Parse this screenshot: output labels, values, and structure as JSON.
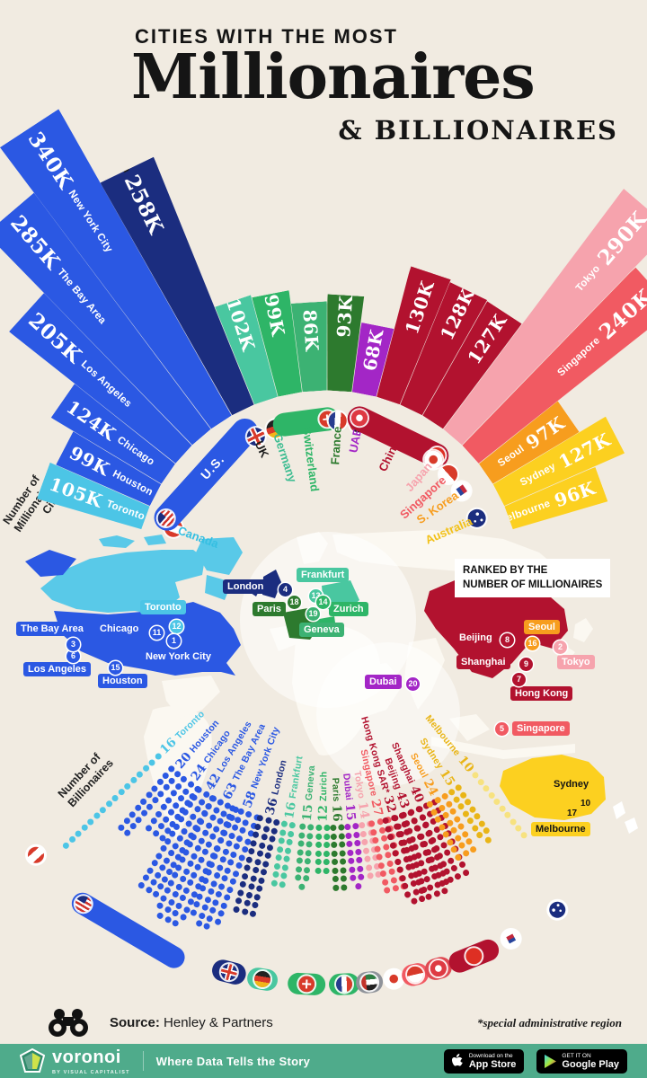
{
  "title": {
    "kicker": "CITIES WITH THE MOST",
    "main": "Millionaires",
    "sub": "& BILLIONAIRES"
  },
  "annotations": {
    "millionaires_axis": [
      "Number of",
      "Millionaires",
      "City"
    ],
    "billionaires_axis": [
      "Number of",
      "Billionaires"
    ],
    "ranked_note": [
      "RANKED BY THE",
      "NUMBER OF MILLIONAIRES"
    ],
    "footnote": "*special administrative region"
  },
  "source": {
    "label": "Source:",
    "value": "Henley & Partners"
  },
  "footer": {
    "brand": "voronoi",
    "brand_sub": "BY VISUAL CAPITALIST",
    "tagline": "Where Data Tells the Story",
    "appstore": [
      "Download on the",
      "App Store"
    ],
    "gplay": [
      "GET IT ON",
      "Google Play"
    ]
  },
  "colors": {
    "background": "#f1ebe1",
    "us_blue": "#2b58e3",
    "uk_navy": "#1b2d7f",
    "canada_cyan": "#4cc5e6",
    "germany_teal": "#49c7a0",
    "swiss_green": "#2eb567",
    "france_green": "#2d7a2e",
    "uae_purple": "#a326c6",
    "china_crimson": "#b2122f",
    "japan_pink": "#f6a3ad",
    "singapore_salmon": "#f15a62",
    "skorea_orange": "#f79d1e",
    "australia_yellow": "#fcd020",
    "footer_green": "#4fab8b"
  },
  "countries": [
    {
      "id": "canada",
      "name": "Canada",
      "color": "#35bfe2"
    },
    {
      "id": "us",
      "name": "U.S.",
      "color": "#2b58e3"
    },
    {
      "id": "uk",
      "name": "UK",
      "color": "#1c1c1c"
    },
    {
      "id": "germany",
      "name": "Germany",
      "color": "#3fbd92"
    },
    {
      "id": "swiss",
      "name": "Switzerland",
      "color": "#2eb567"
    },
    {
      "id": "france",
      "name": "France",
      "color": "#2d7a2e"
    },
    {
      "id": "uae",
      "name": "UAE",
      "color": "#a326c6"
    },
    {
      "id": "china",
      "name": "China",
      "color": "#b2122f"
    },
    {
      "id": "japan",
      "name": "Japan",
      "color": "#f6a3ad"
    },
    {
      "id": "singapore",
      "name": "Singapore",
      "color": "#f15a62"
    },
    {
      "id": "skorea",
      "name": "S. Korea",
      "color": "#f79d1e"
    },
    {
      "id": "australia",
      "name": "Australia",
      "color": "#f2c118"
    }
  ],
  "chart_data": [
    {
      "type": "bar",
      "name": "millionaires-by-city",
      "title": "Number of Millionaires by City",
      "unit": "thousands",
      "series": [
        {
          "city": "Toronto",
          "country": "Canada",
          "label": "105K",
          "value": 105,
          "rank": 12,
          "color": "#4cc5e6",
          "label_style": "inside"
        },
        {
          "city": "Houston",
          "country": "U.S.",
          "label": "99K",
          "value": 99,
          "rank": 15,
          "color": "#2b58e3",
          "label_style": "inside"
        },
        {
          "city": "Chicago",
          "country": "U.S.",
          "label": "124K",
          "value": 124,
          "rank": 11,
          "color": "#2b58e3",
          "label_style": "inside"
        },
        {
          "city": "Los Angeles",
          "country": "U.S.",
          "label": "205K",
          "value": 205,
          "rank": 6,
          "color": "#2b58e3",
          "label_style": "inside"
        },
        {
          "city": "The Bay Area",
          "country": "U.S.",
          "label": "285K",
          "value": 285,
          "rank": 3,
          "color": "#2b58e3",
          "label_style": "inside"
        },
        {
          "city": "New York City",
          "country": "U.S.",
          "label": "340K",
          "value": 340,
          "rank": 1,
          "color": "#2b58e3",
          "label_style": "inside"
        },
        {
          "city": "London",
          "country": "UK",
          "label": "258K",
          "value": 258,
          "rank": 4,
          "color": "#1b2d7f",
          "label_style": "outside",
          "name_color": "#1c1c1c"
        },
        {
          "city": "Frankfurt",
          "country": "Germany",
          "label": "102K",
          "value": 102,
          "rank": 13,
          "color": "#49c7a0",
          "label_style": "outside",
          "name_color": "#3fbd92"
        },
        {
          "city": "Zurich",
          "country": "Switzerland",
          "label": "99K",
          "value": 99,
          "rank": 14,
          "color": "#2eb567",
          "label_style": "outside",
          "name_color": "#2eb567"
        },
        {
          "city": "Geneva",
          "country": "Switzerland",
          "label": "86K",
          "value": 86,
          "rank": 19,
          "color": "#3cb273",
          "label_style": "outside",
          "name_color": "#3cb273"
        },
        {
          "city": "Paris",
          "country": "France",
          "label": "93K",
          "value": 93,
          "rank": 18,
          "color": "#2d7a2e",
          "label_style": "outside",
          "name_color": "#2d7a2e"
        },
        {
          "city": "Dubai",
          "country": "UAE",
          "label": "68K",
          "value": 68,
          "rank": 20,
          "color": "#a326c6",
          "label_style": "outside",
          "name_color": "#a326c6"
        },
        {
          "city": "Hong Kong SAR*",
          "country": "China",
          "label": "130K",
          "value": 130,
          "rank": 7,
          "color": "#b2122f",
          "label_style": "outside",
          "name_color": "#b2122f"
        },
        {
          "city": "Beijing",
          "country": "China",
          "label": "128K",
          "value": 128,
          "rank": 8,
          "color": "#b2122f",
          "label_style": "outside",
          "name_color": "#b2122f"
        },
        {
          "city": "Shanghai",
          "country": "China",
          "label": "127K",
          "value": 127,
          "rank": 9,
          "color": "#b2122f",
          "label_style": "outside",
          "name_color": "#b2122f"
        },
        {
          "city": "Tokyo",
          "country": "Japan",
          "label": "290K",
          "value": 290,
          "rank": 2,
          "color": "#f6a3ad",
          "label_style": "inside"
        },
        {
          "city": "Singapore",
          "country": "Singapore",
          "label": "240K",
          "value": 240,
          "rank": 5,
          "color": "#f15a62",
          "label_style": "inside"
        },
        {
          "city": "Seoul",
          "country": "S. Korea",
          "label": "97K",
          "value": 97,
          "rank": 16,
          "color": "#f79d1e",
          "label_style": "inside"
        },
        {
          "city": "Sydney",
          "country": "Australia",
          "label": "127K",
          "value": 127,
          "rank": 10,
          "color": "#fcd020",
          "label_style": "inside"
        },
        {
          "city": "Melbourne",
          "country": "Australia",
          "label": "96K",
          "value": 96,
          "rank": 17,
          "color": "#fcd020",
          "label_style": "inside"
        }
      ]
    },
    {
      "type": "scatter",
      "name": "billionaires-by-city",
      "title": "Number of Billionaires by City",
      "unit": "billionaires",
      "series": [
        {
          "city": "Toronto",
          "value": 16,
          "color": "#4cc5e6"
        },
        {
          "city": "Houston",
          "value": 20,
          "color": "#2b58e3"
        },
        {
          "city": "Chicago",
          "value": 24,
          "color": "#2b58e3"
        },
        {
          "city": "Los Angeles",
          "value": 42,
          "color": "#2b58e3"
        },
        {
          "city": "The Bay Area",
          "value": 63,
          "color": "#2b58e3"
        },
        {
          "city": "New York City",
          "value": 58,
          "color": "#2b58e3"
        },
        {
          "city": "London",
          "value": 36,
          "color": "#1b2d7f"
        },
        {
          "city": "Frankfurt",
          "value": 16,
          "color": "#49c7a0"
        },
        {
          "city": "Geneva",
          "value": 15,
          "color": "#3cb273"
        },
        {
          "city": "Zurich",
          "value": 12,
          "color": "#2eb567"
        },
        {
          "city": "Paris",
          "value": 16,
          "color": "#2d7a2e"
        },
        {
          "city": "Dubai",
          "value": 15,
          "color": "#a326c6"
        },
        {
          "city": "Tokyo",
          "value": 14,
          "color": "#f6a3ad"
        },
        {
          "city": "Singapore",
          "value": 27,
          "color": "#f15a62"
        },
        {
          "city": "Hong Kong SAR*",
          "value": 32,
          "color": "#b2122f"
        },
        {
          "city": "Beijing",
          "value": 43,
          "color": "#b2122f"
        },
        {
          "city": "Shanghai",
          "value": 40,
          "color": "#b2122f"
        },
        {
          "city": "Seoul",
          "value": 24,
          "color": "#f79d1e"
        },
        {
          "city": "Sydney",
          "value": 15,
          "color": "#e9b517"
        },
        {
          "city": "Melbourne",
          "value": 10,
          "color": "#e9b517",
          "dot_color": "#f7e27f"
        }
      ]
    }
  ]
}
